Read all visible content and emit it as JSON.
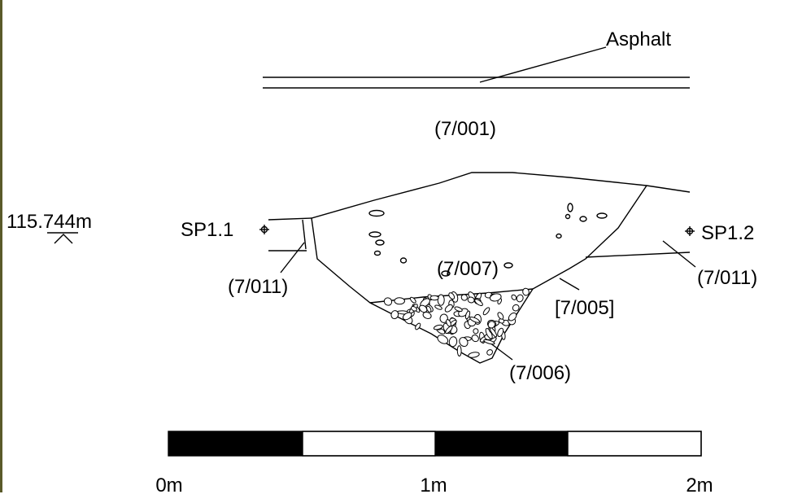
{
  "title_layer": "Asphalt",
  "contexts": {
    "upper": "(7/001)",
    "fill_main": "(7/007)",
    "fill_stones": "(7/006)",
    "cut": "[7/005]",
    "layer_left": "(7/011)",
    "layer_right": "(7/011)"
  },
  "datum": "115.744m",
  "survey_points": [
    "SP1.1",
    "SP1.2"
  ],
  "scale_bar": [
    "0m",
    "1m",
    "2m"
  ]
}
